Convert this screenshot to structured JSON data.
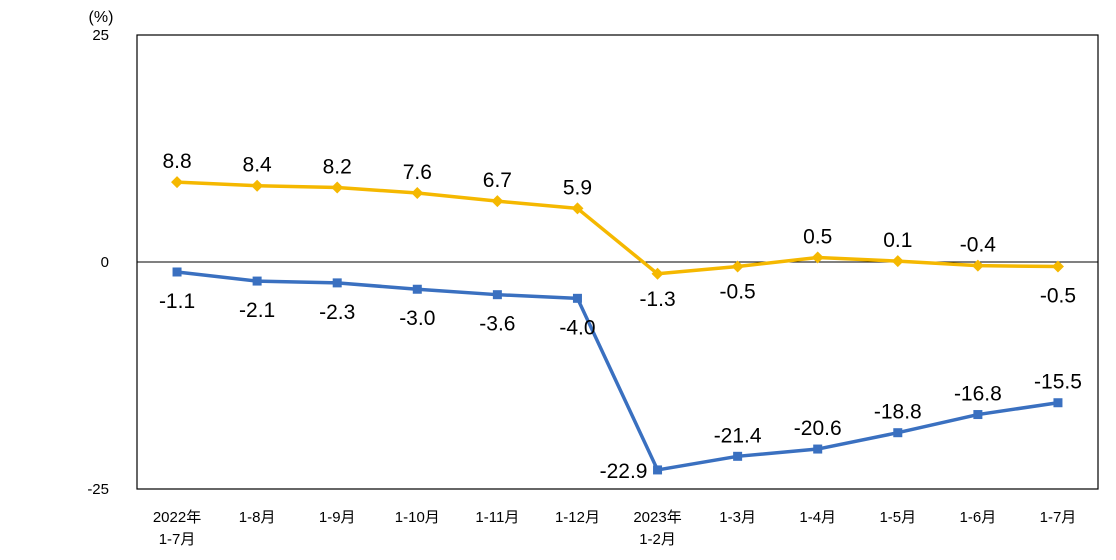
{
  "chart_data": {
    "type": "line",
    "ylabel": "(%)",
    "ylim": [
      -25,
      25
    ],
    "yticks": [
      "25",
      "0",
      "-25"
    ],
    "categories": [
      [
        "2022年",
        "1-7月"
      ],
      [
        "1-8月"
      ],
      [
        "1-9月"
      ],
      [
        "1-10月"
      ],
      [
        "1-11月"
      ],
      [
        "1-12月"
      ],
      [
        "2023年",
        "1-2月"
      ],
      [
        "1-3月"
      ],
      [
        "1-4月"
      ],
      [
        "1-5月"
      ],
      [
        "1-6月"
      ],
      [
        "1-7月"
      ]
    ],
    "grid": false,
    "series": [
      {
        "color": "#f5b800",
        "marker": "diamond",
        "values": [
          8.8,
          8.4,
          8.2,
          7.6,
          6.7,
          5.9,
          -1.3,
          -0.5,
          0.5,
          0.1,
          -0.4,
          -0.5
        ],
        "labels": [
          "8.8",
          "8.4",
          "8.2",
          "7.6",
          "6.7",
          "5.9",
          "-1.3",
          "-0.5",
          "0.5",
          "0.1",
          "-0.4",
          "-0.5"
        ]
      },
      {
        "color": "#3a70c0",
        "marker": "square",
        "values": [
          -1.1,
          -2.1,
          -2.3,
          -3.0,
          -3.6,
          -4.0,
          -22.9,
          -21.4,
          -20.6,
          -18.8,
          -16.8,
          -15.5
        ],
        "labels": [
          "-1.1",
          "-2.1",
          "-2.3",
          "-3.0",
          "-3.6",
          "-4.0",
          "-22.9",
          "-21.4",
          "-20.6",
          "-18.8",
          "-16.8",
          "-15.5"
        ]
      }
    ]
  }
}
